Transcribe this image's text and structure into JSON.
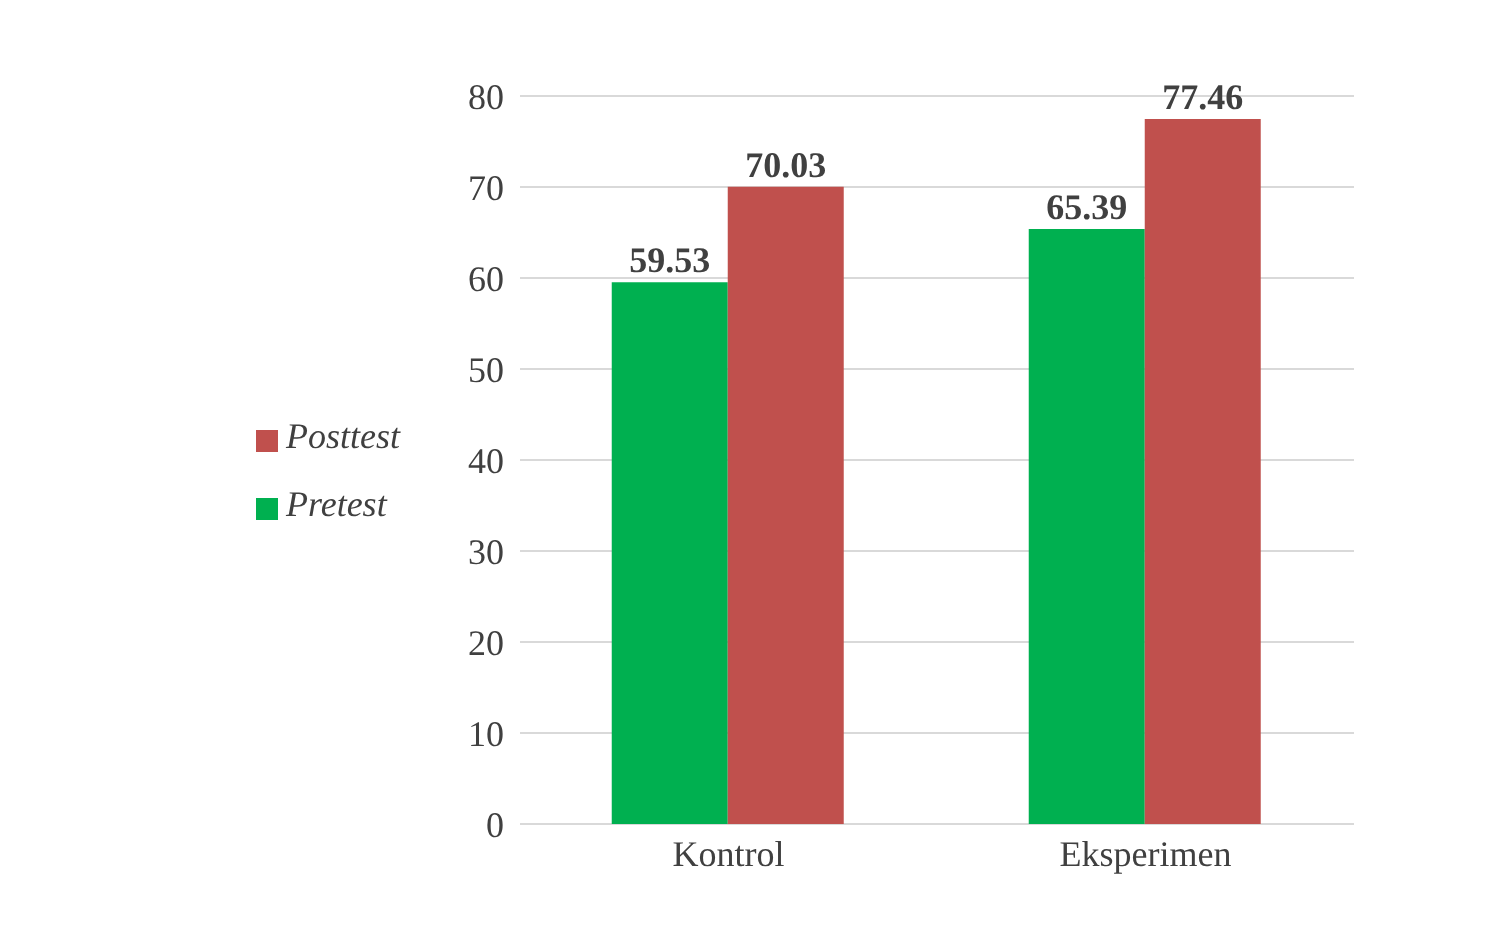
{
  "chart_data": {
    "type": "bar",
    "categories": [
      "Kontrol",
      "Eksperimen"
    ],
    "series": [
      {
        "name": "Pretest",
        "color": "#00b050",
        "values": [
          59.53,
          65.39
        ]
      },
      {
        "name": "Posttest",
        "color": "#c0504d",
        "values": [
          70.03,
          77.46
        ]
      }
    ],
    "ylim": [
      0,
      80
    ],
    "yticks": [
      0,
      10,
      20,
      30,
      40,
      50,
      60,
      70,
      80
    ],
    "grid": "y",
    "legend": "left",
    "data_labels": true
  }
}
